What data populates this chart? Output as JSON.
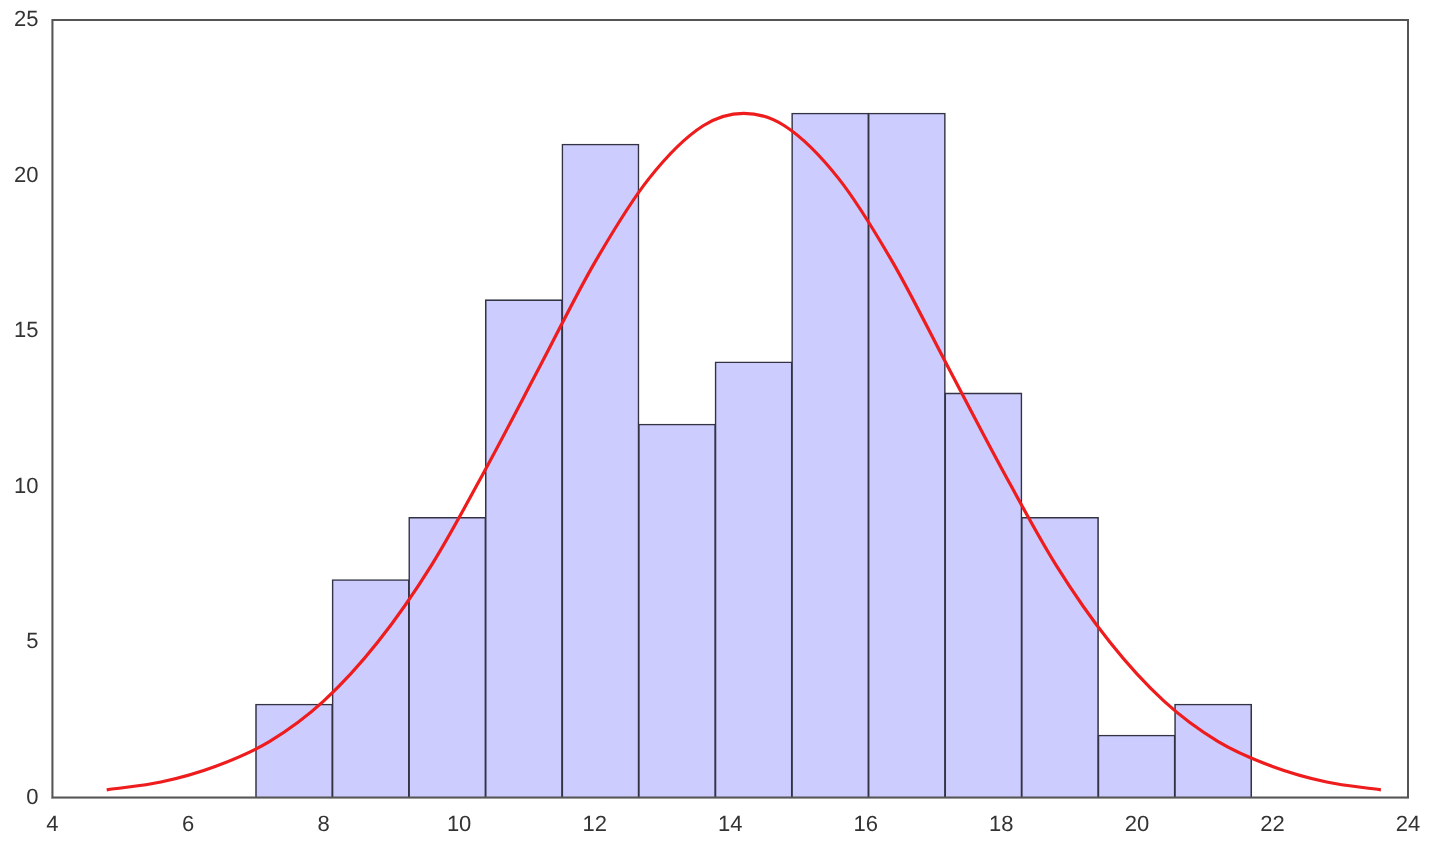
{
  "chart_data": {
    "type": "histogram",
    "bins": [
      7,
      8.13,
      9.26,
      10.39,
      11.52,
      12.65,
      13.78,
      14.91,
      16.04,
      17.17,
      18.3,
      19.43,
      20.56,
      21.69
    ],
    "values": [
      3,
      7,
      9,
      16,
      21,
      12,
      14,
      22,
      22,
      13,
      9,
      2,
      3
    ],
    "color": "#ccccff",
    "series": [
      {
        "type": "line",
        "color": "#ee1c1c",
        "x": [
          4.8,
          5.6,
          6.4,
          7.2,
          8.0,
          8.8,
          9.6,
          10.4,
          11.2,
          12.0,
          12.8,
          13.6,
          14.2,
          14.8,
          15.6,
          16.4,
          17.2,
          18.0,
          18.8,
          19.6,
          20.4,
          21.2,
          22.0,
          22.8,
          23.6
        ],
        "values": [
          0.25,
          0.5,
          1.0,
          1.8,
          3.1,
          5.0,
          7.5,
          10.6,
          13.9,
          17.2,
          19.9,
          21.6,
          22,
          21.6,
          19.9,
          17.2,
          13.9,
          10.6,
          7.5,
          5.0,
          3.1,
          1.8,
          1.0,
          0.5,
          0.25
        ]
      }
    ],
    "xlim": [
      4,
      24
    ],
    "xticks": [
      4,
      6,
      8,
      10,
      12,
      14,
      16,
      18,
      20,
      22,
      24
    ],
    "ylim": [
      0,
      25
    ],
    "yticks": [
      0,
      5,
      10,
      15,
      20,
      25
    ],
    "grid": false,
    "legend": false,
    "marker": "none",
    "line_style": "solid"
  }
}
